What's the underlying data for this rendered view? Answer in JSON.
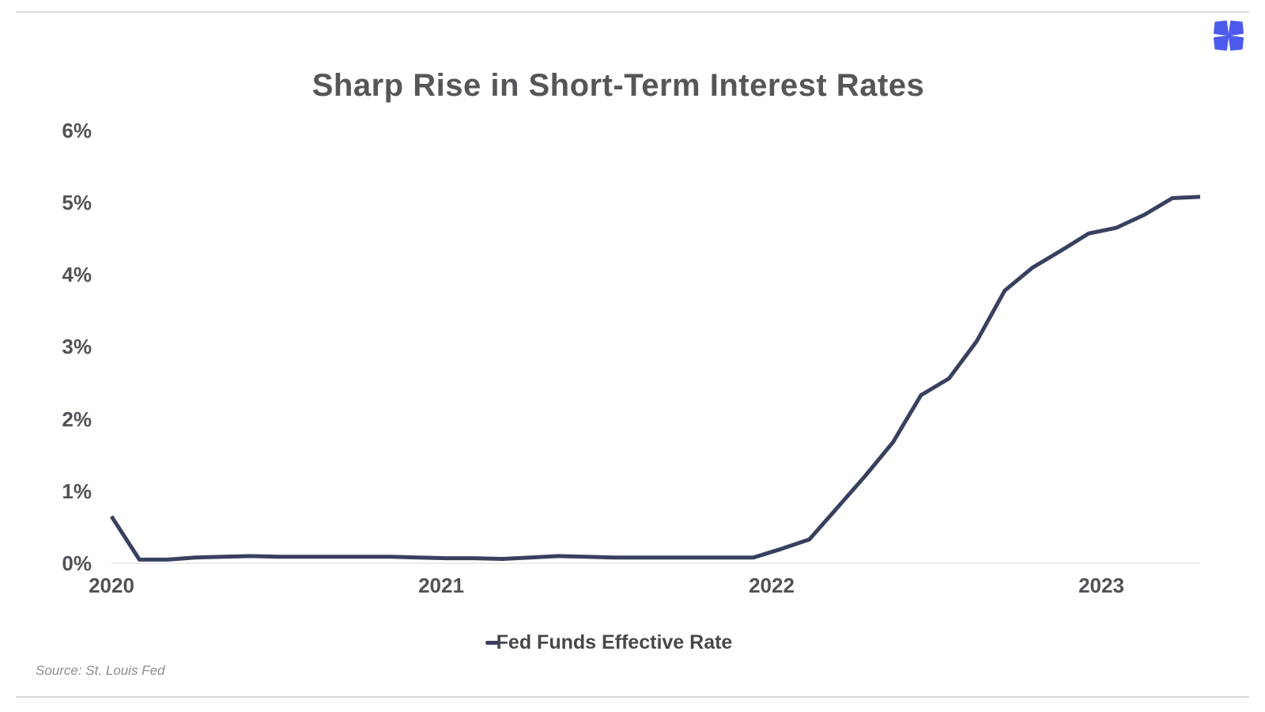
{
  "header": {
    "logo_color": "#4c5bec"
  },
  "chart_data": {
    "type": "line",
    "title": "Sharp Rise in Short-Term Interest Rates",
    "legend": "Fed Funds Effective Rate",
    "legend_position": "bottom",
    "series_color": "#39405f",
    "baseline_color": "#ececee",
    "grid": false,
    "ylim": [
      0,
      6
    ],
    "y_ticks": [
      "0%",
      "1%",
      "2%",
      "3%",
      "4%",
      "5%",
      "6%"
    ],
    "x_tick_labels": [
      "2020",
      "2021",
      "2022",
      "2023"
    ],
    "x": [
      "2020-03",
      "2020-04",
      "2020-05",
      "2020-06",
      "2020-07",
      "2020-08",
      "2020-09",
      "2020-10",
      "2020-11",
      "2020-12",
      "2021-01",
      "2021-02",
      "2021-03",
      "2021-04",
      "2021-05",
      "2021-06",
      "2021-07",
      "2021-08",
      "2021-09",
      "2021-10",
      "2021-11",
      "2021-12",
      "2022-01",
      "2022-02",
      "2022-03",
      "2022-04",
      "2022-05",
      "2022-06",
      "2022-07",
      "2022-08",
      "2022-09",
      "2022-10",
      "2022-11",
      "2022-12",
      "2023-01",
      "2023-02",
      "2023-03",
      "2023-04",
      "2023-05",
      "2023-06"
    ],
    "values": [
      0.65,
      0.05,
      0.05,
      0.08,
      0.09,
      0.1,
      0.09,
      0.09,
      0.09,
      0.09,
      0.09,
      0.08,
      0.07,
      0.07,
      0.06,
      0.08,
      0.1,
      0.09,
      0.08,
      0.08,
      0.08,
      0.08,
      0.08,
      0.08,
      0.2,
      0.33,
      0.77,
      1.21,
      1.68,
      2.33,
      2.56,
      3.08,
      3.78,
      4.1,
      4.33,
      4.57,
      4.65,
      4.83,
      5.06,
      5.08
    ]
  },
  "footer": {
    "source": "Source: St. Louis Fed"
  }
}
